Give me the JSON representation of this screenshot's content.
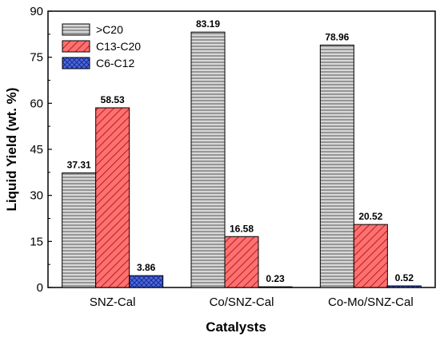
{
  "chart_data": {
    "type": "bar",
    "xlabel": "Catalysts",
    "ylabel": "Liquid Yield (wt. %)",
    "ylim": [
      0,
      90
    ],
    "yticks": [
      0,
      15,
      30,
      45,
      60,
      75,
      90
    ],
    "categories": [
      "SNZ-Cal",
      "Co/SNZ-Cal",
      "Co-Mo/SNZ-Cal"
    ],
    "series": [
      {
        "name": ">C20",
        "values": [
          37.31,
          83.19,
          78.96
        ],
        "color": "#c0c0c0",
        "pattern": "horizontal-lines"
      },
      {
        "name": "C13-C20",
        "values": [
          58.53,
          16.58,
          20.52
        ],
        "color": "#ff6a6a",
        "pattern": "diagonal-lines"
      },
      {
        "name": "C6-C12",
        "values": [
          3.86,
          0.23,
          0.52
        ],
        "color": "#3a5bd9",
        "pattern": "crosshatch"
      }
    ],
    "data_labels": [
      [
        "37.31",
        "83.19",
        "78.96"
      ],
      [
        "58.53",
        "16.58",
        "20.52"
      ],
      [
        "3.86",
        "0.23",
        "0.52"
      ]
    ],
    "legend_position": "top-left",
    "grid": false
  }
}
